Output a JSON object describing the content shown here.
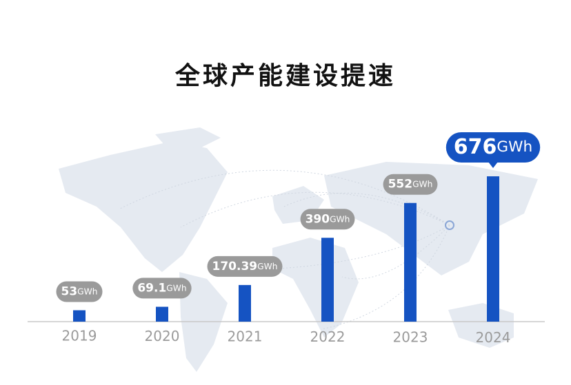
{
  "chart_data": {
    "type": "bar",
    "title": "全球产能建设提速",
    "categories": [
      "2019",
      "2020",
      "2021",
      "2022",
      "2023",
      "2024"
    ],
    "values": [
      53,
      69.1,
      170.39,
      390,
      552,
      676
    ],
    "unit": "GWh",
    "color": "#1553c2",
    "label_color": "#9a9a9a",
    "highlight_color": "#1553c2"
  }
}
